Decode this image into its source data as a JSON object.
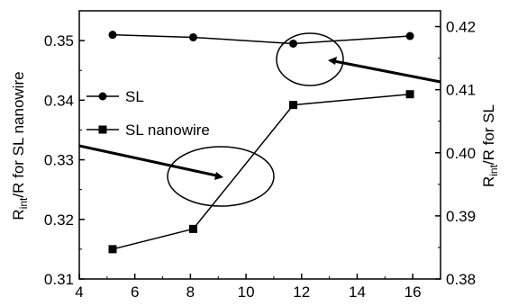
{
  "chart_data": {
    "type": "line",
    "title": "",
    "x": {
      "label": "",
      "min": 4,
      "max": 17,
      "ticks": [
        4,
        6,
        8,
        10,
        12,
        14,
        16
      ],
      "tick_labels": [
        "4",
        "6",
        "8",
        "10",
        "12",
        "14",
        "16"
      ]
    },
    "y_left": {
      "label_main": "R",
      "label_sub": "int",
      "label_rest": "/R for SL nanowire",
      "min": 0.31,
      "max": 0.355,
      "ticks": [
        0.31,
        0.32,
        0.33,
        0.34,
        0.35
      ],
      "tick_labels": [
        "0.31",
        "0.32",
        "0.33",
        "0.34",
        "0.35"
      ]
    },
    "y_right": {
      "label_main": "R",
      "label_sub": "int",
      "label_rest": "/R for SL",
      "min": 0.38,
      "max": 0.4225,
      "ticks": [
        0.38,
        0.39,
        0.4,
        0.41,
        0.42
      ],
      "tick_labels": [
        "0.38",
        "0.39",
        "0.40",
        "0.41",
        "0.42"
      ]
    },
    "series": [
      {
        "name": "SL",
        "axis": "right",
        "marker": "circle",
        "x": [
          5.2,
          8.1,
          11.7,
          15.9
        ],
        "y": [
          0.4187,
          0.4183,
          0.4173,
          0.4185
        ]
      },
      {
        "name": "SL nanowire",
        "axis": "left",
        "marker": "square",
        "x": [
          5.2,
          8.1,
          11.7,
          15.9
        ],
        "y": [
          0.315,
          0.3184,
          0.3392,
          0.341
        ]
      }
    ],
    "annotations": [
      {
        "type": "ellipse",
        "points_to_axis": "right",
        "around_series": "SL"
      },
      {
        "type": "ellipse",
        "points_to_axis": "left",
        "around_series": "SL nanowire"
      }
    ],
    "legend_position": "left, inside plot",
    "grid": false
  }
}
